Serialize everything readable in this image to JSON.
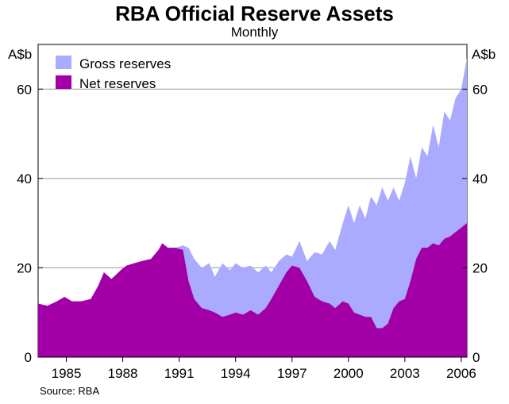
{
  "chart_data": {
    "type": "area",
    "title": "RBA Official Reserve Assets",
    "subtitle": "Monthly",
    "ylabel_left": "A$b",
    "ylabel_right": "A$b",
    "source": "Source: RBA",
    "ylim": [
      0,
      70
    ],
    "xlim": [
      1983.5,
      2006.3
    ],
    "yticks": [
      0,
      20,
      40,
      60
    ],
    "ytick_labels": [
      "0",
      "20",
      "40",
      "60"
    ],
    "xticks": [
      1985,
      1988,
      1991,
      1994,
      1997,
      2000,
      2003,
      2006
    ],
    "xtick_labels": [
      "1985",
      "1988",
      "1991",
      "1994",
      "1997",
      "2000",
      "2003",
      "2006"
    ],
    "colors": {
      "gross": "#aaaaff",
      "net": "#a200a6"
    },
    "legend": [
      {
        "name": "Gross reserves",
        "color": "#aaaaff"
      },
      {
        "name": "Net reserves",
        "color": "#a200a6"
      }
    ],
    "series": [
      {
        "name": "Gross reserves",
        "x": [
          1983.5,
          1984.0,
          1984.5,
          1984.9,
          1985.3,
          1985.8,
          1986.3,
          1986.7,
          1987.0,
          1987.4,
          1987.9,
          1988.2,
          1988.6,
          1989.0,
          1989.5,
          1989.9,
          1990.1,
          1990.4,
          1990.8,
          1991.2,
          1991.5,
          1991.8,
          1992.2,
          1992.6,
          1992.9,
          1993.3,
          1993.7,
          1994.0,
          1994.4,
          1994.8,
          1995.2,
          1995.6,
          1995.9,
          1996.3,
          1996.7,
          1997.0,
          1997.4,
          1997.8,
          1998.2,
          1998.6,
          1999.0,
          1999.3,
          1999.7,
          2000.0,
          2000.3,
          2000.6,
          2000.9,
          2001.2,
          2001.5,
          2001.8,
          2002.1,
          2002.4,
          2002.7,
          2003.0,
          2003.3,
          2003.6,
          2003.9,
          2004.2,
          2004.5,
          2004.8,
          2005.1,
          2005.4,
          2005.7,
          2006.0,
          2006.3
        ],
        "values": [
          12.0,
          11.5,
          12.5,
          13.5,
          12.5,
          12.5,
          13.0,
          16.0,
          19.0,
          17.5,
          19.5,
          20.5,
          21.0,
          21.5,
          22.0,
          24.0,
          25.5,
          24.5,
          24.5,
          25.0,
          24.5,
          22.0,
          20.0,
          21.0,
          18.0,
          21.0,
          19.5,
          21.0,
          20.0,
          20.5,
          19.0,
          20.5,
          19.0,
          21.5,
          23.0,
          22.5,
          26.0,
          21.5,
          23.5,
          23.0,
          26.0,
          24.0,
          30.0,
          34.0,
          30.0,
          34.0,
          31.0,
          36.0,
          34.0,
          38.0,
          35.0,
          38.0,
          35.0,
          39.0,
          45.0,
          40.0,
          47.0,
          45.0,
          52.0,
          47.0,
          55.0,
          53.0,
          58.0,
          60.0,
          67.0
        ]
      },
      {
        "name": "Net reserves",
        "x": [
          1983.5,
          1984.0,
          1984.5,
          1984.9,
          1985.3,
          1985.8,
          1986.3,
          1986.7,
          1987.0,
          1987.4,
          1987.9,
          1988.2,
          1988.6,
          1989.0,
          1989.5,
          1989.9,
          1990.1,
          1990.4,
          1990.8,
          1991.2,
          1991.5,
          1991.8,
          1992.2,
          1992.6,
          1992.9,
          1993.3,
          1993.7,
          1994.0,
          1994.4,
          1994.8,
          1995.2,
          1995.6,
          1995.9,
          1996.3,
          1996.7,
          1997.0,
          1997.4,
          1997.8,
          1998.2,
          1998.6,
          1999.0,
          1999.3,
          1999.7,
          2000.0,
          2000.3,
          2000.6,
          2000.9,
          2001.2,
          2001.5,
          2001.8,
          2002.1,
          2002.4,
          2002.7,
          2003.0,
          2003.3,
          2003.6,
          2003.9,
          2004.2,
          2004.5,
          2004.8,
          2005.1,
          2005.4,
          2005.7,
          2006.0,
          2006.3
        ],
        "values": [
          12.0,
          11.5,
          12.5,
          13.5,
          12.5,
          12.5,
          13.0,
          16.0,
          19.0,
          17.5,
          19.5,
          20.5,
          21.0,
          21.5,
          22.0,
          24.0,
          25.5,
          24.5,
          24.5,
          24.0,
          17.0,
          13.0,
          11.0,
          10.5,
          10.0,
          9.0,
          9.5,
          10.0,
          9.5,
          10.5,
          9.5,
          11.0,
          13.0,
          16.0,
          19.0,
          20.5,
          20.0,
          17.0,
          13.5,
          12.5,
          12.0,
          11.0,
          12.5,
          12.0,
          10.0,
          9.5,
          9.0,
          9.0,
          6.5,
          6.5,
          7.5,
          11.0,
          12.5,
          13.0,
          17.0,
          22.0,
          24.5,
          24.5,
          25.5,
          25.0,
          26.5,
          27.0,
          28.0,
          29.0,
          30.0
        ]
      }
    ]
  }
}
